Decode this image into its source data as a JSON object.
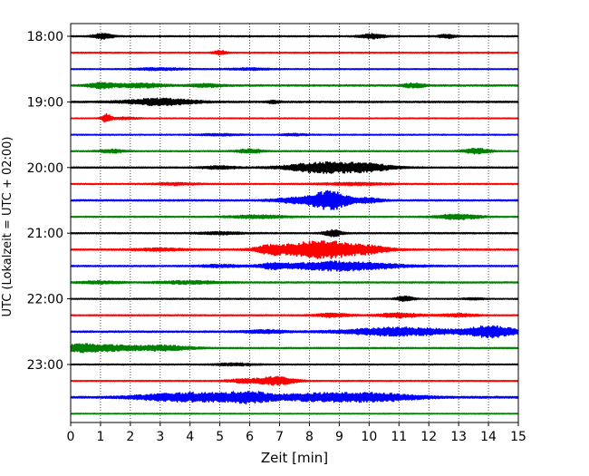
{
  "chart_data": {
    "type": "line",
    "chart_kind": "helicorder seismogram",
    "xlabel": "Zeit  [min]",
    "ylabel": "UTC (Lokalzeit = UTC + 02:00)",
    "xlim": [
      0,
      15
    ],
    "x_ticks": [
      "0",
      "1",
      "2",
      "3",
      "4",
      "5",
      "6",
      "7",
      "8",
      "9",
      "10",
      "11",
      "12",
      "13",
      "14",
      "15"
    ],
    "y_tick_labels": [
      "18:00",
      "19:00",
      "20:00",
      "21:00",
      "22:00",
      "23:00"
    ],
    "row_interval_min": 15,
    "row_start_times": [
      "18:00",
      "18:15",
      "18:30",
      "18:45",
      "19:00",
      "19:15",
      "19:30",
      "19:45",
      "20:00",
      "20:15",
      "20:30",
      "20:45",
      "21:00",
      "21:15",
      "21:30",
      "21:45",
      "22:00",
      "22:15",
      "22:30",
      "22:45",
      "23:00",
      "23:15",
      "23:30",
      "23:45"
    ],
    "grid": "vertical dotted lines at each minute",
    "trace_colors": [
      "#000000",
      "#ff0000",
      "#0000ff",
      "#008000"
    ],
    "rows": [
      {
        "events": [
          [
            1.1,
            0.35,
            0.25
          ],
          [
            10.1,
            0.3,
            0.3
          ],
          [
            12.6,
            0.25,
            0.2
          ]
        ],
        "base": 0.07
      },
      {
        "events": [
          [
            5.0,
            0.3,
            0.15
          ]
        ],
        "base": 0.06
      },
      {
        "events": [
          [
            3.0,
            0.15,
            0.6
          ],
          [
            6.0,
            0.12,
            0.5
          ]
        ],
        "base": 0.06
      },
      {
        "events": [
          [
            1.0,
            0.35,
            0.3
          ],
          [
            2.3,
            0.28,
            0.6
          ],
          [
            4.6,
            0.2,
            0.4
          ],
          [
            11.5,
            0.3,
            0.25
          ]
        ],
        "base": 0.09
      },
      {
        "events": [
          [
            3.0,
            0.45,
            0.8
          ],
          [
            6.8,
            0.2,
            0.15
          ]
        ],
        "base": 0.09
      },
      {
        "events": [
          [
            1.2,
            0.55,
            0.12
          ],
          [
            1.8,
            0.15,
            0.3
          ]
        ],
        "base": 0.05
      },
      {
        "events": [
          [
            5.0,
            0.12,
            0.5
          ],
          [
            7.5,
            0.12,
            0.3
          ]
        ],
        "base": 0.06
      },
      {
        "events": [
          [
            1.4,
            0.22,
            0.3
          ],
          [
            6.0,
            0.25,
            0.3
          ],
          [
            13.6,
            0.35,
            0.3
          ]
        ],
        "base": 0.07
      },
      {
        "events": [
          [
            8.5,
            0.7,
            0.9
          ],
          [
            5.0,
            0.18,
            0.4
          ],
          [
            10.0,
            0.4,
            0.6
          ]
        ],
        "base": 0.08
      },
      {
        "events": [
          [
            3.5,
            0.15,
            0.5
          ],
          [
            9.5,
            0.15,
            0.8
          ]
        ],
        "base": 0.07
      },
      {
        "events": [
          [
            8.7,
            1.3,
            0.45
          ],
          [
            7.5,
            0.35,
            0.5
          ],
          [
            10.0,
            0.3,
            0.3
          ]
        ],
        "base": 0.09
      },
      {
        "events": [
          [
            6.3,
            0.2,
            0.7
          ],
          [
            13.0,
            0.35,
            0.5
          ]
        ],
        "base": 0.07
      },
      {
        "events": [
          [
            8.8,
            0.45,
            0.2
          ],
          [
            5.0,
            0.15,
            0.5
          ]
        ],
        "base": 0.08
      },
      {
        "events": [
          [
            8.4,
            1.2,
            0.9
          ],
          [
            6.7,
            0.5,
            0.35
          ],
          [
            10.0,
            0.35,
            0.5
          ],
          [
            3.0,
            0.15,
            0.6
          ]
        ],
        "base": 0.09
      },
      {
        "events": [
          [
            9.0,
            0.6,
            1.3
          ],
          [
            6.8,
            0.3,
            0.3
          ],
          [
            5.0,
            0.15,
            0.5
          ]
        ],
        "base": 0.08
      },
      {
        "events": [
          [
            4.0,
            0.2,
            0.7
          ],
          [
            1.0,
            0.15,
            0.5
          ]
        ],
        "base": 0.08
      },
      {
        "events": [
          [
            11.2,
            0.35,
            0.2
          ],
          [
            13.5,
            0.1,
            0.3
          ]
        ],
        "base": 0.06
      },
      {
        "events": [
          [
            8.8,
            0.25,
            0.4
          ],
          [
            11.0,
            0.3,
            0.5
          ],
          [
            13.0,
            0.2,
            0.4
          ]
        ],
        "base": 0.07
      },
      {
        "events": [
          [
            11.0,
            0.55,
            1.3
          ],
          [
            14.1,
            0.75,
            0.6
          ],
          [
            6.5,
            0.2,
            0.5
          ]
        ],
        "base": 0.09
      },
      {
        "events": [
          [
            0.4,
            0.55,
            0.5
          ],
          [
            3.0,
            0.35,
            0.7
          ],
          [
            1.5,
            0.3,
            0.5
          ]
        ],
        "base": 0.08
      },
      {
        "events": [
          [
            5.5,
            0.15,
            0.5
          ]
        ],
        "base": 0.06
      },
      {
        "events": [
          [
            6.9,
            0.55,
            0.45
          ],
          [
            5.8,
            0.25,
            0.4
          ]
        ],
        "base": 0.06
      },
      {
        "events": [
          [
            6.0,
            0.55,
            0.5
          ],
          [
            4.5,
            0.5,
            1.0
          ],
          [
            8.5,
            0.5,
            1.3
          ],
          [
            10.5,
            0.35,
            0.9
          ],
          [
            3.0,
            0.25,
            0.8
          ]
        ],
        "base": 0.12
      },
      {
        "events": [],
        "base": 0.05
      }
    ]
  }
}
